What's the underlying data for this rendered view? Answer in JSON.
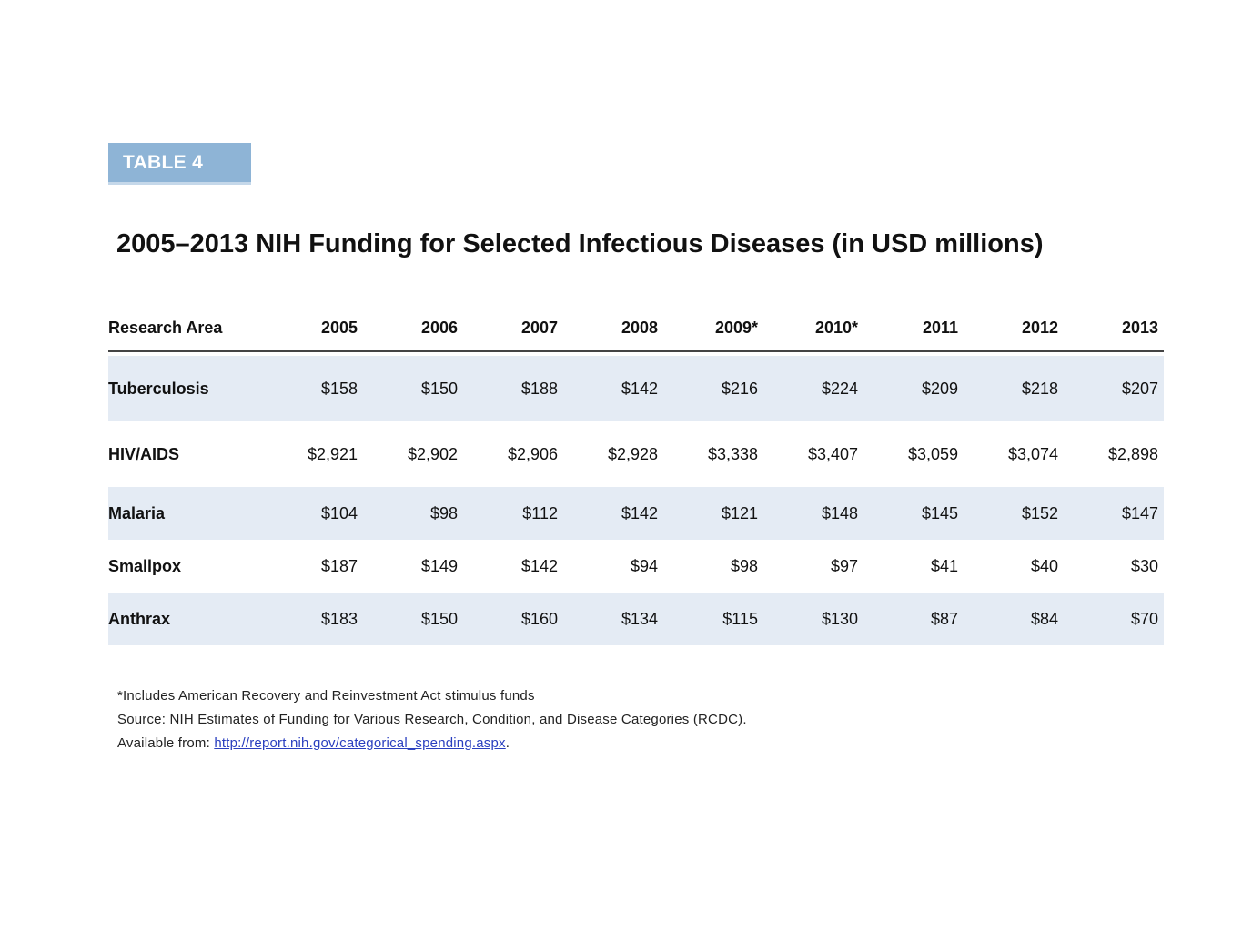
{
  "badge": {
    "label": "TABLE 4"
  },
  "title": "2005–2013 NIH Funding for Selected Infectious Diseases (in USD millions)",
  "table": {
    "columns": [
      "Research Area",
      "2005",
      "2006",
      "2007",
      "2008",
      "2009*",
      "2010*",
      "2011",
      "2012",
      "2013"
    ],
    "rows": [
      {
        "area": "Tuberculosis",
        "values": [
          "$158",
          "$150",
          "$188",
          "$142",
          "$216",
          "$224",
          "$209",
          "$218",
          "$207"
        ]
      },
      {
        "area": "HIV/AIDS",
        "values": [
          "$2,921",
          "$2,902",
          "$2,906",
          "$2,928",
          "$3,338",
          "$3,407",
          "$3,059",
          "$3,074",
          "$2,898"
        ]
      },
      {
        "area": "Malaria",
        "values": [
          "$104",
          "$98",
          "$112",
          "$142",
          "$121",
          "$148",
          "$145",
          "$152",
          "$147"
        ]
      },
      {
        "area": "Smallpox",
        "values": [
          "$187",
          "$149",
          "$142",
          "$94",
          "$98",
          "$97",
          "$41",
          "$40",
          "$30"
        ]
      },
      {
        "area": "Anthrax",
        "values": [
          "$183",
          "$150",
          "$160",
          "$134",
          "$115",
          "$130",
          "$87",
          "$84",
          "$70"
        ]
      }
    ]
  },
  "footnotes": {
    "stimulus": "*Includes American Recovery and Reinvestment Act stimulus funds",
    "source": "Source: NIH Estimates of Funding for Various Research, Condition, and Disease Categories (RCDC).",
    "available_prefix": "Available from: ",
    "link_text": "http://report.nih.gov/categorical_spending.aspx",
    "available_suffix": "."
  },
  "colors": {
    "badge_bg": "#8eb4d6",
    "row_shade": "#e4ebf4",
    "link": "#2a3fbf"
  }
}
